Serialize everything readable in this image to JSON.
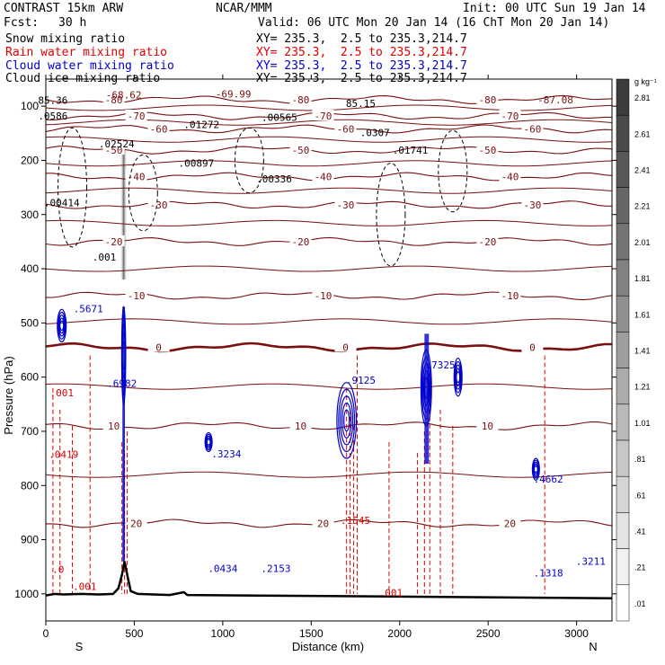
{
  "header": {
    "model": "CONTRAST 15km ARW",
    "center": "NCAR/MMM",
    "init": "Init: 00 UTC Sun 19 Jan 14",
    "fcst_label": "Fcst:",
    "fcst_value": "30 h",
    "valid": "Valid: 06 UTC Mon 20 Jan 14 (16 ChT Mon 20 Jan 14)"
  },
  "fields": [
    {
      "name": "Snow mixing ratio",
      "xy": "XY= 235.3,  2.5 to 235.3,214.7",
      "color": "#000000"
    },
    {
      "name": "Rain water mixing ratio",
      "xy": "XY= 235.3,  2.5 to 235.3,214.7",
      "color": "#e00000"
    },
    {
      "name": "Cloud water mixing ratio",
      "xy": "XY= 235.3,  2.5 to 235.3,214.7",
      "color": "#0000cc"
    },
    {
      "name": "Cloud ice mixing ratio",
      "xy": "XY= 235.3,  2.5 to 235.3,214.7",
      "color": "#000000"
    }
  ],
  "colors": {
    "temperature": "#7a1010",
    "freezing_level": "#7a1010",
    "cloud_water": "#0000cc",
    "rain": "#e00000",
    "ice": "#000000",
    "terrain": "#000000"
  },
  "chart_data": {
    "type": "cross-section",
    "xlabel": "Distance (km)",
    "ylabel": "Pressure (hPa)",
    "xlim": [
      0,
      3200
    ],
    "ylim": [
      1050,
      50
    ],
    "x_ticks": [
      0,
      500,
      1000,
      1500,
      2000,
      2500,
      3000
    ],
    "y_ticks": [
      100,
      200,
      300,
      400,
      500,
      600,
      700,
      800,
      900,
      1000
    ],
    "end_labels": {
      "left": "S",
      "right": "N"
    },
    "colorbar": {
      "unit": "g kg⁻¹",
      "ticks": [
        "2.81",
        "2.61",
        "2.41",
        "2.21",
        "2.01",
        "1.81",
        "1.61",
        "1.41",
        "1.21",
        "1.01",
        ".81",
        ".61",
        ".41",
        ".21",
        ".01"
      ]
    },
    "temperature_levels": [
      {
        "label": "-80",
        "p": 88
      },
      {
        "label": "-70",
        "p": 118
      },
      {
        "label": "-60",
        "p": 142
      },
      {
        "label": "-50",
        "p": 181
      },
      {
        "label": "-40",
        "p": 230
      },
      {
        "label": "-30",
        "p": 282
      },
      {
        "label": "-20",
        "p": 350
      },
      {
        "label": "-10",
        "p": 450
      },
      {
        "label": "0",
        "p": 545
      },
      {
        "label": "10",
        "p": 690
      },
      {
        "label": "20",
        "p": 870
      }
    ],
    "cloud_cells": [
      {
        "x": 90,
        "p": 505,
        "w": 50,
        "h": 60
      },
      {
        "x": 440,
        "p": 560,
        "w": 22,
        "h": 180
      },
      {
        "x": 1700,
        "p": 680,
        "w": 110,
        "h": 140
      },
      {
        "x": 2150,
        "p": 620,
        "w": 60,
        "h": 140
      },
      {
        "x": 2330,
        "p": 600,
        "w": 45,
        "h": 70
      },
      {
        "x": 2770,
        "p": 770,
        "w": 40,
        "h": 40
      },
      {
        "x": 920,
        "p": 720,
        "w": 40,
        "h": 35
      }
    ],
    "extrema_labels": [
      {
        "text": "85.36",
        "x": 40,
        "p": 96,
        "color": "black"
      },
      {
        "text": "-68.62",
        "x": 440,
        "p": 86,
        "color": "maroon"
      },
      {
        "text": "-69.99",
        "x": 1060,
        "p": 84,
        "color": "maroon"
      },
      {
        "text": "85.15",
        "x": 1780,
        "p": 101,
        "color": "black"
      },
      {
        "text": "-87.08",
        "x": 2880,
        "p": 95,
        "color": "maroon"
      },
      {
        "text": ".0586",
        "x": 40,
        "p": 125,
        "color": "black"
      },
      {
        "text": ".01272",
        "x": 880,
        "p": 140,
        "color": "black"
      },
      {
        "text": ".00565",
        "x": 1320,
        "p": 127,
        "color": "black"
      },
      {
        "text": ".0307",
        "x": 1860,
        "p": 155,
        "color": "black"
      },
      {
        "text": ".02524",
        "x": 400,
        "p": 176,
        "color": "black"
      },
      {
        "text": ".01741",
        "x": 2060,
        "p": 188,
        "color": "black"
      },
      {
        "text": ".00897",
        "x": 850,
        "p": 212,
        "color": "black"
      },
      {
        "text": ".00336",
        "x": 1290,
        "p": 241,
        "color": "black"
      },
      {
        "text": ".00414",
        "x": 90,
        "p": 285,
        "color": "black"
      },
      {
        "text": ".5671",
        "x": 240,
        "p": 480,
        "color": "blue"
      },
      {
        "text": ".6982",
        "x": 430,
        "p": 618,
        "color": "blue"
      },
      {
        "text": ".9125",
        "x": 1780,
        "p": 612,
        "color": "blue"
      },
      {
        "text": ".7325",
        "x": 2230,
        "p": 584,
        "color": "blue"
      },
      {
        "text": ".0419",
        "x": 100,
        "p": 749,
        "color": "red"
      },
      {
        "text": ".3234",
        "x": 1020,
        "p": 748,
        "color": "blue"
      },
      {
        "text": ".1545",
        "x": 1750,
        "p": 871,
        "color": "red"
      },
      {
        "text": ".4662",
        "x": 2840,
        "p": 795,
        "color": "blue"
      },
      {
        "text": ".0434",
        "x": 1000,
        "p": 960,
        "color": "blue"
      },
      {
        "text": ".2153",
        "x": 1300,
        "p": 960,
        "color": "blue"
      },
      {
        "text": ".1318",
        "x": 2840,
        "p": 968,
        "color": "blue"
      },
      {
        "text": ".3211",
        "x": 3080,
        "p": 946,
        "color": "blue"
      },
      {
        "text": ".001",
        "x": 90,
        "p": 635,
        "color": "red"
      },
      {
        "text": ".001",
        "x": 220,
        "p": 993,
        "color": "red"
      },
      {
        "text": ".001",
        "x": 1950,
        "p": 1004,
        "color": "red"
      },
      {
        "text": ".0",
        "x": 70,
        "p": 961,
        "color": "red"
      },
      {
        "text": ".001",
        "x": 330,
        "p": 385,
        "color": "black"
      }
    ],
    "terrain": [
      [
        0,
        1003
      ],
      [
        50,
        1000
      ],
      [
        100,
        1001
      ],
      [
        200,
        1000
      ],
      [
        300,
        1001
      ],
      [
        380,
        1000
      ],
      [
        410,
        990
      ],
      [
        430,
        965
      ],
      [
        445,
        940
      ],
      [
        460,
        965
      ],
      [
        480,
        995
      ],
      [
        520,
        1000
      ],
      [
        700,
        1002
      ],
      [
        780,
        997
      ],
      [
        800,
        1002
      ],
      [
        1200,
        1003
      ],
      [
        1600,
        1004
      ],
      [
        2000,
        1005
      ],
      [
        2400,
        1006
      ],
      [
        2800,
        1007
      ],
      [
        3200,
        1008
      ]
    ]
  }
}
